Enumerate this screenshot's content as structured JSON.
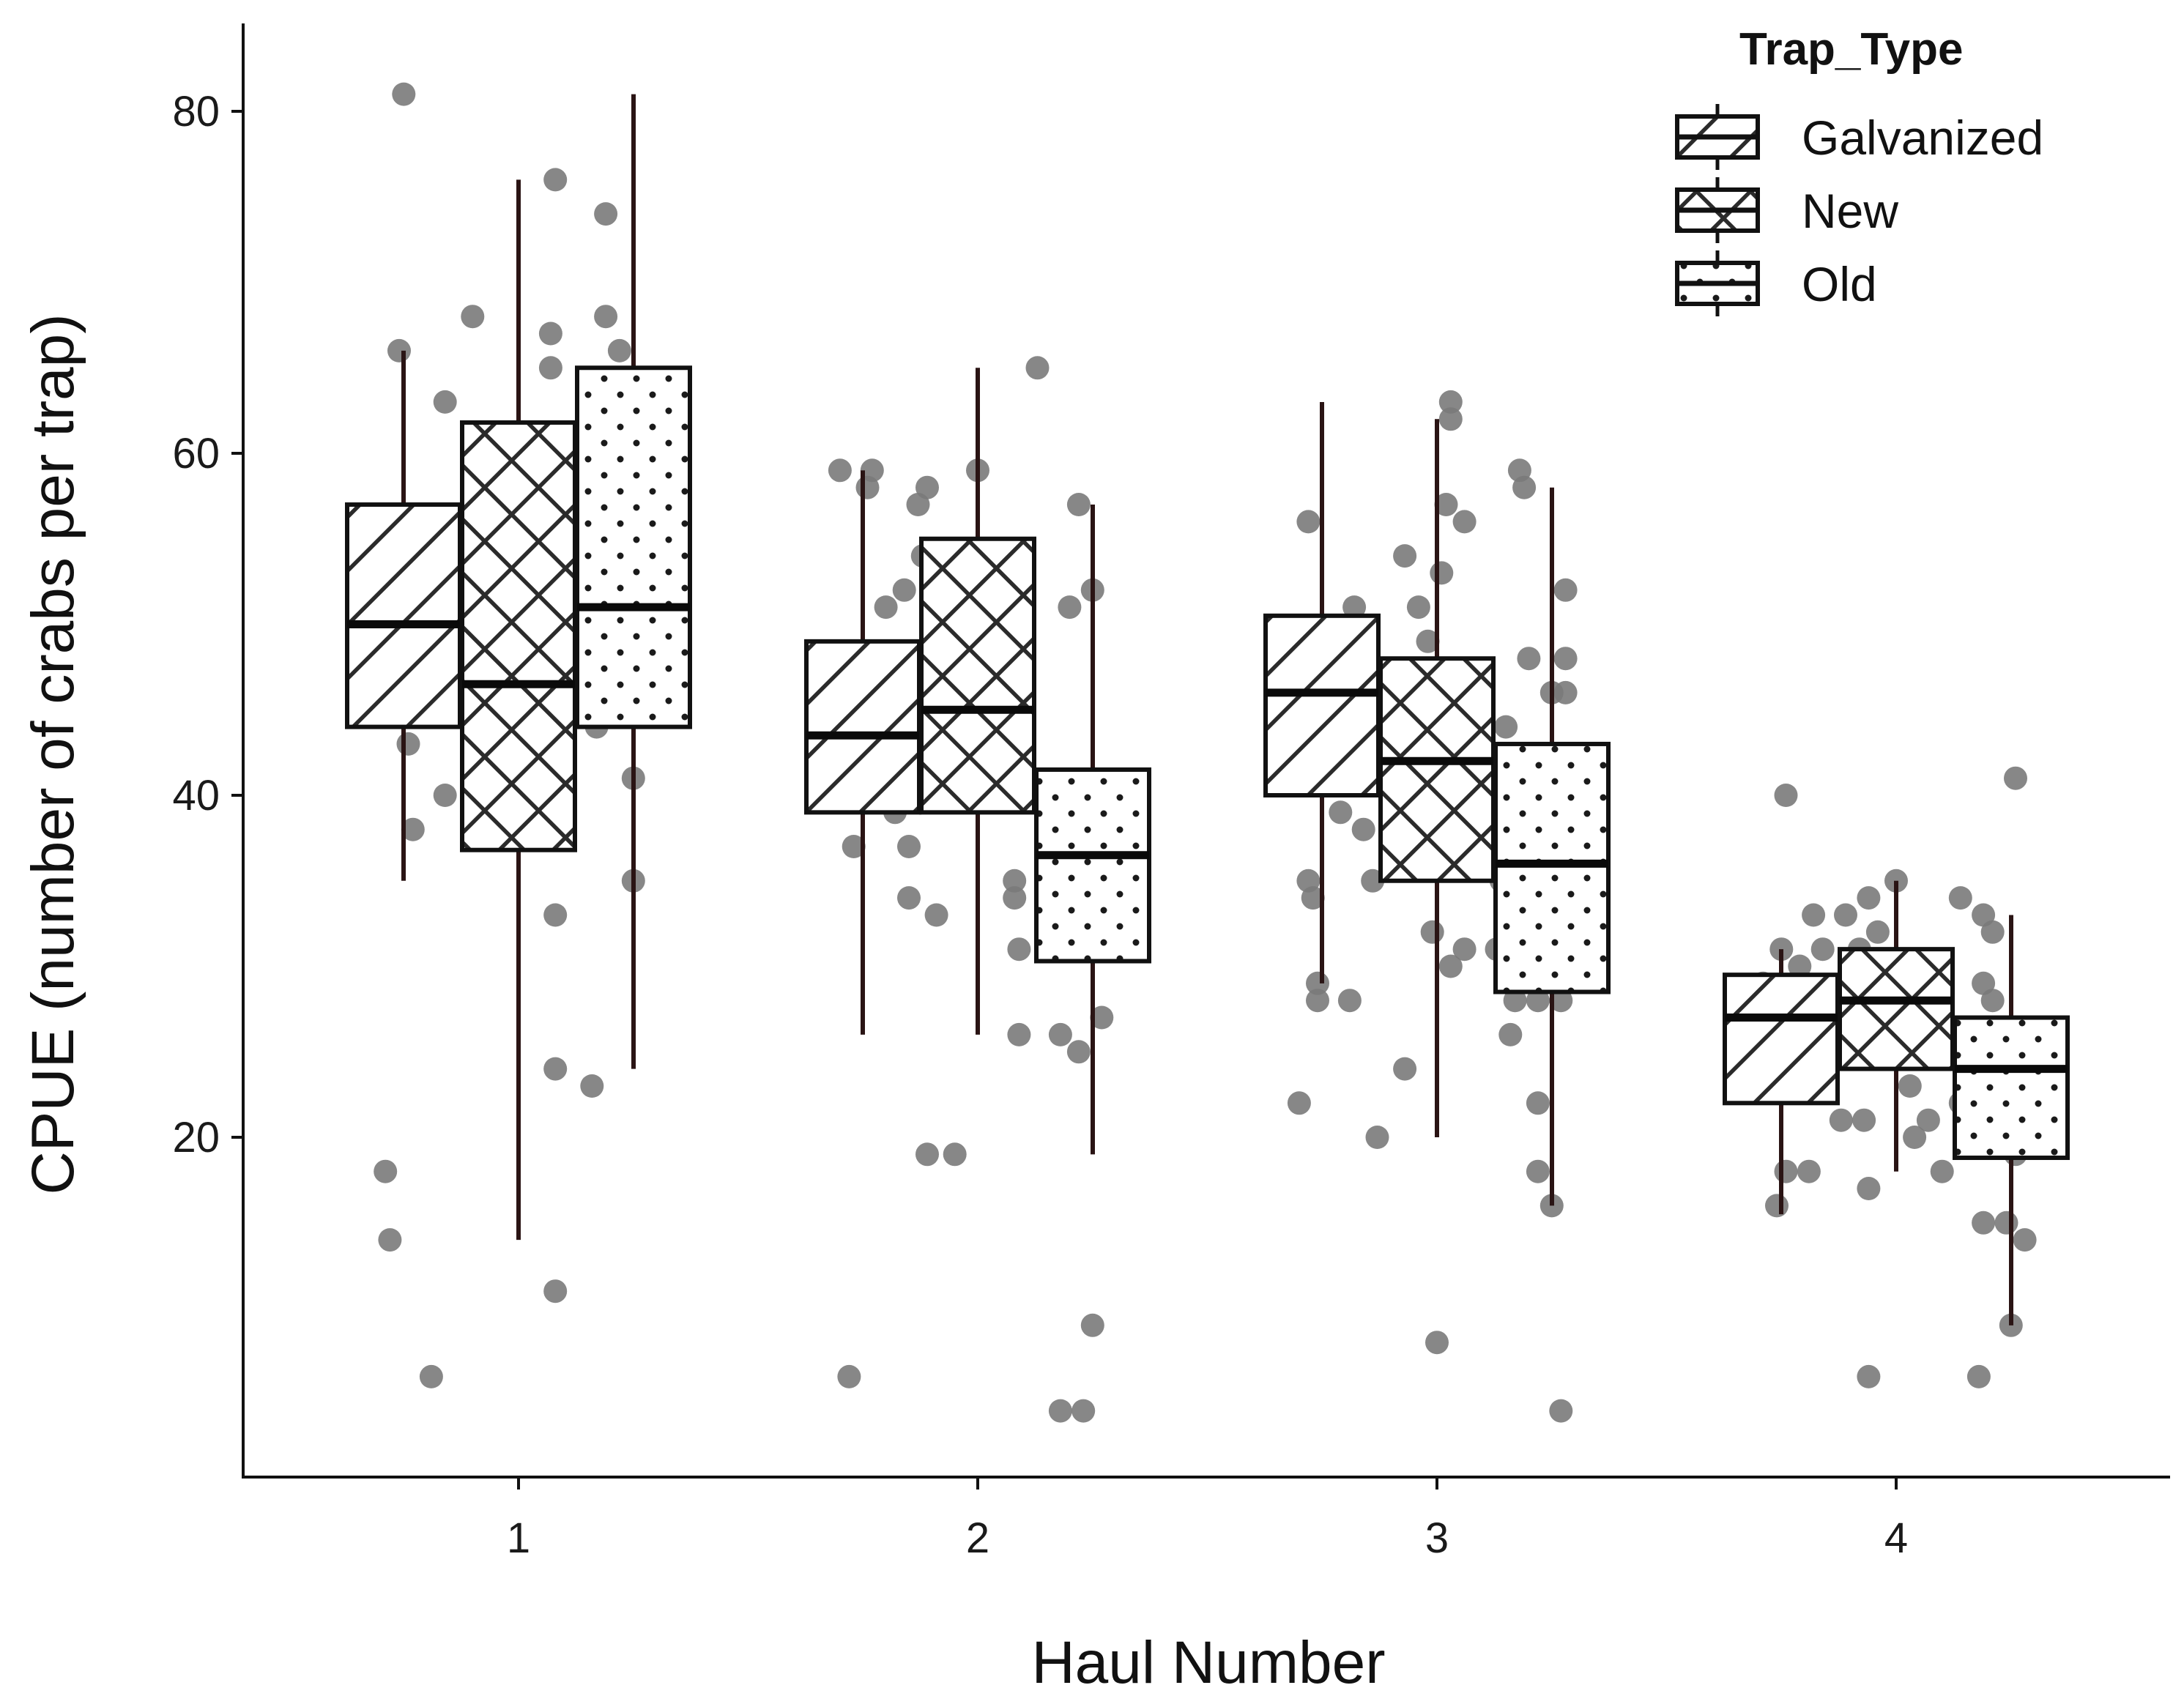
{
  "chart_data": {
    "type": "boxplot",
    "xlabel": "Haul Number",
    "ylabel": "CPUE (number of crabs per trap)",
    "categories": [
      "1",
      "2",
      "3",
      "4"
    ],
    "yticks": [
      20,
      40,
      60,
      80
    ],
    "ylim": [
      1,
      86
    ],
    "grid": false,
    "legend": {
      "title": "Trap_Type",
      "position": "top-right",
      "entries": [
        "Galvanized",
        "New",
        "Old"
      ]
    },
    "point_color": "#7a7a7a",
    "box_outline_color": "#111111",
    "series": [
      {
        "name": "Galvanized",
        "pattern": "diagonal-hatch",
        "boxes": [
          {
            "haul": "1",
            "whisker_low": 35,
            "q1": 44,
            "median": 50,
            "q3": 57,
            "whisker_high": 66
          },
          {
            "haul": "2",
            "whisker_low": 26,
            "q1": 39,
            "median": 43.5,
            "q3": 49,
            "whisker_high": 59
          },
          {
            "haul": "3",
            "whisker_low": 29,
            "q1": 40,
            "median": 46,
            "q3": 50.5,
            "whisker_high": 63
          },
          {
            "haul": "4",
            "whisker_low": 15.5,
            "q1": 22,
            "median": 27,
            "q3": 29.5,
            "whisker_high": 31
          }
        ]
      },
      {
        "name": "New",
        "pattern": "cross-hatch",
        "boxes": [
          {
            "haul": "1",
            "whisker_low": 14,
            "q1": 36.8,
            "median": 46.5,
            "q3": 61.8,
            "whisker_high": 76
          },
          {
            "haul": "2",
            "whisker_low": 26,
            "q1": 39,
            "median": 45,
            "q3": 55,
            "whisker_high": 65
          },
          {
            "haul": "3",
            "whisker_low": 20,
            "q1": 35,
            "median": 42,
            "q3": 48,
            "whisker_high": 62
          },
          {
            "haul": "4",
            "whisker_low": 18,
            "q1": 24,
            "median": 28,
            "q3": 31,
            "whisker_high": 35
          }
        ]
      },
      {
        "name": "Old",
        "pattern": "dots",
        "boxes": [
          {
            "haul": "1",
            "whisker_low": 24,
            "q1": 44,
            "median": 51,
            "q3": 65,
            "whisker_high": 81
          },
          {
            "haul": "2",
            "whisker_low": 19,
            "q1": 30.3,
            "median": 36.5,
            "q3": 41.5,
            "whisker_high": 57
          },
          {
            "haul": "3",
            "whisker_low": 16,
            "q1": 28.5,
            "median": 36,
            "q3": 43,
            "whisker_high": 58
          },
          {
            "haul": "4",
            "whisker_low": 9,
            "q1": 18.8,
            "median": 24,
            "q3": 27,
            "whisker_high": 33
          }
        ]
      }
    ],
    "points": [
      {
        "x": 0.75,
        "y": 81
      },
      {
        "x": 0.74,
        "y": 66
      },
      {
        "x": 0.84,
        "y": 63
      },
      {
        "x": 0.9,
        "y": 68
      },
      {
        "x": 0.93,
        "y": 59
      },
      {
        "x": 0.98,
        "y": 57
      },
      {
        "x": 1.07,
        "y": 67
      },
      {
        "x": 1.07,
        "y": 65
      },
      {
        "x": 1.08,
        "y": 76
      },
      {
        "x": 1.19,
        "y": 74
      },
      {
        "x": 1.19,
        "y": 68
      },
      {
        "x": 1.22,
        "y": 66
      },
      {
        "x": 1.22,
        "y": 64
      },
      {
        "x": 1.23,
        "y": 61
      },
      {
        "x": 0.72,
        "y": 51
      },
      {
        "x": 0.79,
        "y": 51
      },
      {
        "x": 0.75,
        "y": 47
      },
      {
        "x": 0.76,
        "y": 43
      },
      {
        "x": 0.77,
        "y": 38
      },
      {
        "x": 0.84,
        "y": 40
      },
      {
        "x": 0.71,
        "y": 18
      },
      {
        "x": 0.72,
        "y": 14
      },
      {
        "x": 0.81,
        "y": 6
      },
      {
        "x": 0.9,
        "y": 46
      },
      {
        "x": 0.96,
        "y": 43
      },
      {
        "x": 1.06,
        "y": 40
      },
      {
        "x": 1.08,
        "y": 33
      },
      {
        "x": 1.08,
        "y": 24
      },
      {
        "x": 1.16,
        "y": 23
      },
      {
        "x": 1.08,
        "y": 11
      },
      {
        "x": 1.25,
        "y": 58
      },
      {
        "x": 1.26,
        "y": 50
      },
      {
        "x": 1.22,
        "y": 49
      },
      {
        "x": 1.17,
        "y": 47
      },
      {
        "x": 1.19,
        "y": 46
      },
      {
        "x": 1.25,
        "y": 46
      },
      {
        "x": 1.17,
        "y": 44
      },
      {
        "x": 1.25,
        "y": 41
      },
      {
        "x": 1.25,
        "y": 35
      },
      {
        "x": 1.7,
        "y": 59
      },
      {
        "x": 1.77,
        "y": 59
      },
      {
        "x": 1.76,
        "y": 58
      },
      {
        "x": 1.87,
        "y": 57
      },
      {
        "x": 1.89,
        "y": 58
      },
      {
        "x": 2.0,
        "y": 59
      },
      {
        "x": 1.88,
        "y": 54
      },
      {
        "x": 1.84,
        "y": 52
      },
      {
        "x": 1.8,
        "y": 51
      },
      {
        "x": 1.74,
        "y": 47
      },
      {
        "x": 1.72,
        "y": 48
      },
      {
        "x": 1.8,
        "y": 40
      },
      {
        "x": 1.82,
        "y": 39
      },
      {
        "x": 1.73,
        "y": 37
      },
      {
        "x": 1.85,
        "y": 37
      },
      {
        "x": 1.85,
        "y": 34
      },
      {
        "x": 1.91,
        "y": 33
      },
      {
        "x": 1.89,
        "y": 19
      },
      {
        "x": 1.95,
        "y": 19
      },
      {
        "x": 1.72,
        "y": 6
      },
      {
        "x": 2.0,
        "y": 54
      },
      {
        "x": 2.09,
        "y": 53
      },
      {
        "x": 2.07,
        "y": 47
      },
      {
        "x": 1.98,
        "y": 43
      },
      {
        "x": 2.08,
        "y": 35
      },
      {
        "x": 2.08,
        "y": 34
      },
      {
        "x": 2.09,
        "y": 31
      },
      {
        "x": 2.09,
        "y": 26
      },
      {
        "x": 2.13,
        "y": 65
      },
      {
        "x": 2.2,
        "y": 51
      },
      {
        "x": 2.16,
        "y": 38
      },
      {
        "x": 2.25,
        "y": 52
      },
      {
        "x": 2.22,
        "y": 57
      },
      {
        "x": 2.18,
        "y": 40
      },
      {
        "x": 2.23,
        "y": 39
      },
      {
        "x": 2.23,
        "y": 37
      },
      {
        "x": 2.25,
        "y": 31
      },
      {
        "x": 2.27,
        "y": 27
      },
      {
        "x": 2.18,
        "y": 26
      },
      {
        "x": 2.22,
        "y": 25
      },
      {
        "x": 2.25,
        "y": 9
      },
      {
        "x": 2.18,
        "y": 4
      },
      {
        "x": 2.23,
        "y": 4
      },
      {
        "x": 2.72,
        "y": 56
      },
      {
        "x": 2.72,
        "y": 48
      },
      {
        "x": 2.77,
        "y": 45
      },
      {
        "x": 2.82,
        "y": 51
      },
      {
        "x": 2.79,
        "y": 39
      },
      {
        "x": 2.72,
        "y": 35
      },
      {
        "x": 2.73,
        "y": 34
      },
      {
        "x": 2.74,
        "y": 29
      },
      {
        "x": 2.74,
        "y": 28
      },
      {
        "x": 2.81,
        "y": 28
      },
      {
        "x": 2.7,
        "y": 22
      },
      {
        "x": 2.84,
        "y": 38
      },
      {
        "x": 2.86,
        "y": 35
      },
      {
        "x": 2.93,
        "y": 54
      },
      {
        "x": 2.96,
        "y": 51
      },
      {
        "x": 2.98,
        "y": 49
      },
      {
        "x": 2.99,
        "y": 46
      },
      {
        "x": 3.03,
        "y": 63
      },
      {
        "x": 3.03,
        "y": 62
      },
      {
        "x": 3.02,
        "y": 57
      },
      {
        "x": 3.06,
        "y": 56
      },
      {
        "x": 3.01,
        "y": 53
      },
      {
        "x": 3.04,
        "y": 44
      },
      {
        "x": 3.02,
        "y": 41
      },
      {
        "x": 3.01,
        "y": 40
      },
      {
        "x": 3.03,
        "y": 38
      },
      {
        "x": 2.95,
        "y": 36
      },
      {
        "x": 2.99,
        "y": 32
      },
      {
        "x": 3.03,
        "y": 30
      },
      {
        "x": 3.06,
        "y": 31
      },
      {
        "x": 2.93,
        "y": 24
      },
      {
        "x": 2.87,
        "y": 20
      },
      {
        "x": 3.0,
        "y": 8
      },
      {
        "x": 3.18,
        "y": 59
      },
      {
        "x": 3.19,
        "y": 58
      },
      {
        "x": 3.28,
        "y": 52
      },
      {
        "x": 3.2,
        "y": 48
      },
      {
        "x": 3.28,
        "y": 48
      },
      {
        "x": 3.25,
        "y": 46
      },
      {
        "x": 3.28,
        "y": 46
      },
      {
        "x": 3.15,
        "y": 44
      },
      {
        "x": 3.19,
        "y": 42
      },
      {
        "x": 3.22,
        "y": 40
      },
      {
        "x": 3.14,
        "y": 35
      },
      {
        "x": 3.26,
        "y": 37
      },
      {
        "x": 3.26,
        "y": 35
      },
      {
        "x": 3.13,
        "y": 31
      },
      {
        "x": 3.17,
        "y": 28
      },
      {
        "x": 3.16,
        "y": 26
      },
      {
        "x": 3.22,
        "y": 28
      },
      {
        "x": 3.27,
        "y": 28
      },
      {
        "x": 3.22,
        "y": 22
      },
      {
        "x": 3.22,
        "y": 18
      },
      {
        "x": 3.25,
        "y": 16
      },
      {
        "x": 3.27,
        "y": 4
      },
      {
        "x": 3.76,
        "y": 40
      },
      {
        "x": 3.75,
        "y": 31
      },
      {
        "x": 3.71,
        "y": 29
      },
      {
        "x": 3.67,
        "y": 26
      },
      {
        "x": 3.73,
        "y": 24
      },
      {
        "x": 3.79,
        "y": 25
      },
      {
        "x": 3.83,
        "y": 23
      },
      {
        "x": 3.74,
        "y": 16
      },
      {
        "x": 3.76,
        "y": 18
      },
      {
        "x": 3.81,
        "y": 18
      },
      {
        "x": 3.82,
        "y": 33
      },
      {
        "x": 3.84,
        "y": 31
      },
      {
        "x": 3.79,
        "y": 30
      },
      {
        "x": 3.89,
        "y": 33
      },
      {
        "x": 3.92,
        "y": 31
      },
      {
        "x": 3.96,
        "y": 32
      },
      {
        "x": 3.94,
        "y": 34
      },
      {
        "x": 3.89,
        "y": 28
      },
      {
        "x": 3.96,
        "y": 27
      },
      {
        "x": 3.91,
        "y": 25
      },
      {
        "x": 3.88,
        "y": 21
      },
      {
        "x": 3.93,
        "y": 21
      },
      {
        "x": 3.94,
        "y": 17
      },
      {
        "x": 3.94,
        "y": 6
      },
      {
        "x": 4.0,
        "y": 35
      },
      {
        "x": 4.04,
        "y": 30
      },
      {
        "x": 4.06,
        "y": 28
      },
      {
        "x": 4.03,
        "y": 23
      },
      {
        "x": 4.04,
        "y": 20
      },
      {
        "x": 4.07,
        "y": 21
      },
      {
        "x": 4.1,
        "y": 18
      },
      {
        "x": 4.14,
        "y": 34
      },
      {
        "x": 4.19,
        "y": 33
      },
      {
        "x": 4.21,
        "y": 32
      },
      {
        "x": 4.19,
        "y": 29
      },
      {
        "x": 4.14,
        "y": 22
      },
      {
        "x": 4.19,
        "y": 23
      },
      {
        "x": 4.21,
        "y": 28
      },
      {
        "x": 4.26,
        "y": 41
      },
      {
        "x": 4.25,
        "y": 25
      },
      {
        "x": 4.23,
        "y": 21
      },
      {
        "x": 4.26,
        "y": 19
      },
      {
        "x": 4.24,
        "y": 15
      },
      {
        "x": 4.28,
        "y": 14
      },
      {
        "x": 4.25,
        "y": 9
      },
      {
        "x": 4.18,
        "y": 6
      },
      {
        "x": 4.19,
        "y": 15
      }
    ]
  }
}
